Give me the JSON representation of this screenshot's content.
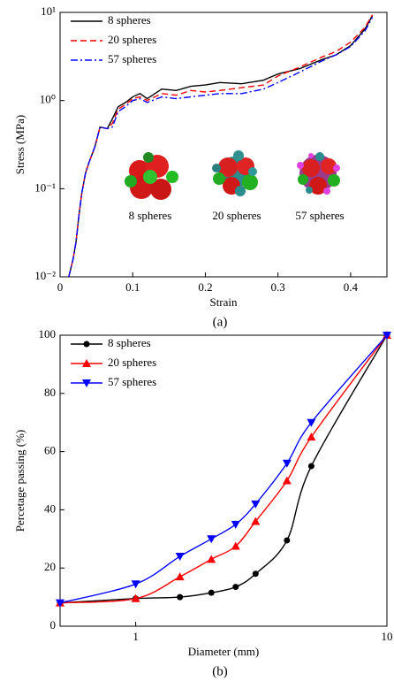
{
  "chart_data": [
    {
      "type": "line",
      "caption": "(a)",
      "x_label": "Strain",
      "y_label": "Stress (MPa)",
      "yscale": "log",
      "xscale": "linear",
      "x": [
        0.012,
        0.018,
        0.022,
        0.026,
        0.03,
        0.035,
        0.04,
        0.048,
        0.055,
        0.065,
        0.072,
        0.08,
        0.09,
        0.1,
        0.11,
        0.12,
        0.14,
        0.16,
        0.18,
        0.2,
        0.22,
        0.25,
        0.28,
        0.3,
        0.33,
        0.36,
        0.38,
        0.4,
        0.42,
        0.43
      ],
      "series": [
        {
          "name": "8 spheres",
          "color": "#000000",
          "linestyle": "solid",
          "values": [
            0.01,
            0.016,
            0.025,
            0.05,
            0.09,
            0.15,
            0.2,
            0.3,
            0.5,
            0.48,
            0.62,
            0.85,
            0.95,
            1.1,
            1.2,
            1.05,
            1.35,
            1.3,
            1.45,
            1.5,
            1.6,
            1.55,
            1.7,
            2.0,
            2.3,
            2.9,
            3.3,
            4.2,
            6.5,
            9.2
          ]
        },
        {
          "name": "20 spheres",
          "color": "#ff0000",
          "linestyle": "dashed",
          "values": [
            0.01,
            0.016,
            0.025,
            0.05,
            0.09,
            0.15,
            0.2,
            0.3,
            0.5,
            0.48,
            0.55,
            0.8,
            0.9,
            1.05,
            1.1,
            1.0,
            1.2,
            1.15,
            1.3,
            1.25,
            1.3,
            1.4,
            1.5,
            1.9,
            2.4,
            3.1,
            3.6,
            4.6,
            6.8,
            9.4
          ]
        },
        {
          "name": "57 spheres",
          "color": "#0000ff",
          "linestyle": "dashdot",
          "values": [
            0.01,
            0.016,
            0.025,
            0.05,
            0.09,
            0.15,
            0.2,
            0.3,
            0.5,
            0.48,
            0.5,
            0.75,
            0.85,
            1.0,
            1.05,
            0.95,
            1.1,
            1.05,
            1.1,
            1.15,
            1.2,
            1.2,
            1.35,
            1.6,
            2.1,
            2.8,
            3.3,
            4.1,
            6.2,
            8.8
          ]
        }
      ],
      "xlim": [
        0,
        0.45
      ],
      "xticks": [
        0,
        0.1,
        0.2,
        0.3,
        0.4
      ],
      "ylim": [
        0.01,
        10
      ],
      "yticks": [
        {
          "value": 0.01,
          "label": "10⁻²"
        },
        {
          "value": 0.1,
          "label": "10⁻¹"
        },
        {
          "value": 1,
          "label": "10⁰"
        },
        {
          "value": 10,
          "label": "10¹"
        }
      ],
      "legend": "upper left",
      "annotations": [
        "8 spheres",
        "20 spheres",
        "57 spheres"
      ]
    },
    {
      "type": "line",
      "caption": "(b)",
      "x_label": "Diameter (mm)",
      "y_label": "Percetage passing (%)",
      "xscale": "log",
      "yscale": "linear",
      "x": [
        0.5,
        1,
        1.5,
        2,
        2.5,
        3,
        4,
        5,
        10
      ],
      "series": [
        {
          "name": "8 spheres",
          "color": "#000000",
          "marker": "circle",
          "values": [
            8,
            9.5,
            10,
            11.5,
            13.5,
            18,
            29.5,
            55,
            100
          ]
        },
        {
          "name": "20 spheres",
          "color": "#ff0000",
          "marker": "triangle-up",
          "values": [
            8,
            9.5,
            17,
            23,
            27.5,
            36,
            50,
            65,
            100
          ]
        },
        {
          "name": "57 spheres",
          "color": "#0000ff",
          "marker": "triangle-down",
          "values": [
            8,
            14.5,
            24,
            30,
            35,
            42,
            56,
            70,
            100
          ]
        }
      ],
      "xlim": [
        0.5,
        10
      ],
      "xticks": [
        1,
        10
      ],
      "ylim": [
        0,
        100
      ],
      "yticks": [
        0,
        20,
        40,
        60,
        80,
        100
      ],
      "legend": "upper left"
    }
  ]
}
